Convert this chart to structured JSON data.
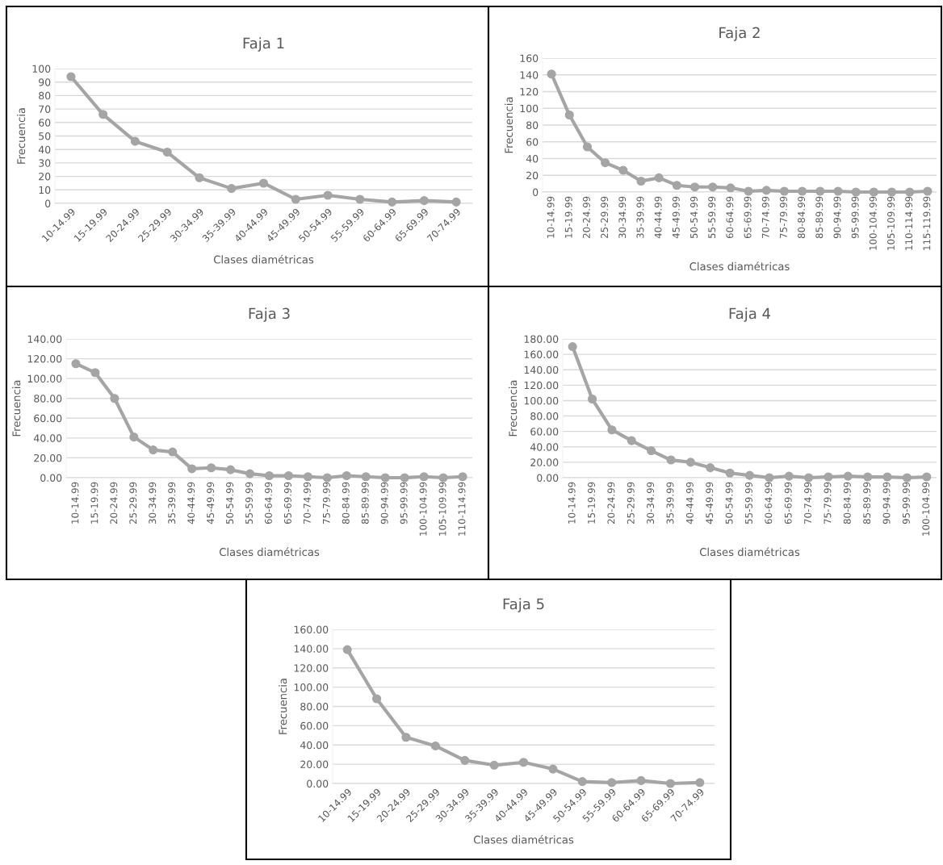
{
  "chart_data": [
    {
      "type": "line",
      "title": "Faja 1",
      "xlabel": "Clases diamétricas",
      "ylabel": "Frecuencia",
      "marker": "circle",
      "grid": "y",
      "categories": [
        "10-14.99",
        "15-19.99",
        "20-24.99",
        "25-29.99",
        "30-34.99",
        "35-39.99",
        "40-44.99",
        "45-49.99",
        "50-54.99",
        "55-59.99",
        "60-64.99",
        "65-69.99",
        "70-74.99"
      ],
      "series": [
        {
          "color": "#a5a5a5",
          "values": [
            94,
            66,
            46,
            38,
            19,
            11,
            15,
            3,
            6,
            3,
            1,
            2,
            1
          ]
        }
      ],
      "ylim": [
        0,
        100
      ],
      "yticks": [
        0,
        10,
        20,
        30,
        40,
        50,
        60,
        70,
        80,
        90,
        100
      ]
    },
    {
      "type": "line",
      "title": "Faja 2",
      "xlabel": "Clases diamétricas",
      "ylabel": "Frecuencia",
      "marker": "circle",
      "grid": "y",
      "categories": [
        "10-14.99",
        "15-19.99",
        "20-24.99",
        "25-29.99",
        "30-34.99",
        "35-39.99",
        "40-44.99",
        "45-49.99",
        "50-54.99",
        "55-59.99",
        "60-64.99",
        "65-69.99",
        "70-74.99",
        "75-79.99",
        "80-84.99",
        "85-89.99",
        "90-94.99",
        "95-99.99",
        "100-104.99",
        "105-109.99",
        "110-114.99",
        "115-119.99"
      ],
      "series": [
        {
          "color": "#a5a5a5",
          "values": [
            141,
            92,
            54,
            35,
            26,
            13,
            17,
            8,
            6,
            6,
            5,
            1,
            2,
            1,
            1,
            1,
            1,
            0,
            0,
            0,
            0,
            1
          ]
        }
      ],
      "ylim": [
        0,
        160
      ],
      "yticks": [
        0,
        20,
        40,
        60,
        80,
        100,
        120,
        140,
        160
      ]
    },
    {
      "type": "line",
      "title": "Faja 3",
      "xlabel": "Clases diamétricas",
      "ylabel": "Frecuencia",
      "marker": "circle",
      "grid": "y",
      "categories": [
        "10-14.99",
        "15-19.99",
        "20-24.99",
        "25-29.99",
        "30-34.99",
        "35-39.99",
        "40-44.99",
        "45-49.99",
        "50-54.99",
        "55-59.99",
        "60-64.99",
        "65-69.99",
        "70-74.99",
        "75-79.99",
        "80-84.99",
        "85-89.99",
        "90-94.99",
        "95-99.99",
        "100-104.99",
        "105-109.99",
        "110-114.99"
      ],
      "series": [
        {
          "color": "#a5a5a5",
          "values": [
            115,
            106,
            80,
            41,
            28,
            26,
            9,
            10,
            8,
            4,
            2,
            2,
            1,
            0,
            2,
            1,
            0,
            0,
            1,
            0,
            1
          ]
        }
      ],
      "ylim": [
        0,
        140
      ],
      "yticks": [
        {
          "value": 0,
          "label": "0.00"
        },
        {
          "value": 20,
          "label": "20.00"
        },
        {
          "value": 40,
          "label": "40.00"
        },
        {
          "value": 60,
          "label": "60.00"
        },
        {
          "value": 80,
          "label": "80.00"
        },
        {
          "value": 100,
          "label": "100.00"
        },
        {
          "value": 120,
          "label": "120.00"
        },
        {
          "value": 140,
          "label": "140.00"
        }
      ]
    },
    {
      "type": "line",
      "title": "Faja 4",
      "xlabel": "Clases diamétricas",
      "ylabel": "Frecuencia",
      "marker": "circle",
      "grid": "y",
      "categories": [
        "10-14.99",
        "15-19.99",
        "20-24.99",
        "25-29.99",
        "30-34.99",
        "35-39.99",
        "40-44.99",
        "45-49.99",
        "50-54.99",
        "55-59.99",
        "60-64.99",
        "65-69.99",
        "70-74.99",
        "75-79.99",
        "80-84.99",
        "85-89.99",
        "90-94.99",
        "95-99.99",
        "100-104.99"
      ],
      "series": [
        {
          "color": "#a5a5a5",
          "values": [
            170,
            102,
            62,
            48,
            35,
            23,
            20,
            13,
            6,
            3,
            0,
            2,
            0,
            1,
            2,
            1,
            1,
            0,
            1
          ]
        }
      ],
      "ylim": [
        0,
        180
      ],
      "yticks": [
        {
          "value": 0,
          "label": "0.00"
        },
        {
          "value": 20,
          "label": "20.00"
        },
        {
          "value": 40,
          "label": "40.00"
        },
        {
          "value": 60,
          "label": "60.00"
        },
        {
          "value": 80,
          "label": "80.00"
        },
        {
          "value": 100,
          "label": "100.00"
        },
        {
          "value": 120,
          "label": "120.00"
        },
        {
          "value": 140,
          "label": "140.00"
        },
        {
          "value": 160,
          "label": "160.00"
        },
        {
          "value": 180,
          "label": "180.00"
        }
      ]
    },
    {
      "type": "line",
      "title": "Faja 5",
      "xlabel": "Clases diamétricas",
      "ylabel": "Frecuencia",
      "marker": "circle",
      "grid": "y",
      "categories": [
        "10-14.99",
        "15-19.99",
        "20-24.99",
        "25-29.99",
        "30-34.99",
        "35-39.99",
        "40-44.99",
        "45-49.99",
        "50-54.99",
        "55-59.99",
        "60-64.99",
        "65-69.99",
        "70-74.99"
      ],
      "series": [
        {
          "color": "#a5a5a5",
          "values": [
            139,
            88,
            48,
            39,
            24,
            19,
            22,
            15,
            2,
            1,
            3,
            0,
            1
          ]
        }
      ],
      "ylim": [
        0,
        160
      ],
      "yticks": [
        {
          "value": 0,
          "label": "0.00"
        },
        {
          "value": 20,
          "label": "20.00"
        },
        {
          "value": 40,
          "label": "40.00"
        },
        {
          "value": 60,
          "label": "60.00"
        },
        {
          "value": 80,
          "label": "80.00"
        },
        {
          "value": 100,
          "label": "100.00"
        },
        {
          "value": 120,
          "label": "120.00"
        },
        {
          "value": 140,
          "label": "140.00"
        },
        {
          "value": 160,
          "label": "160.00"
        }
      ]
    }
  ]
}
